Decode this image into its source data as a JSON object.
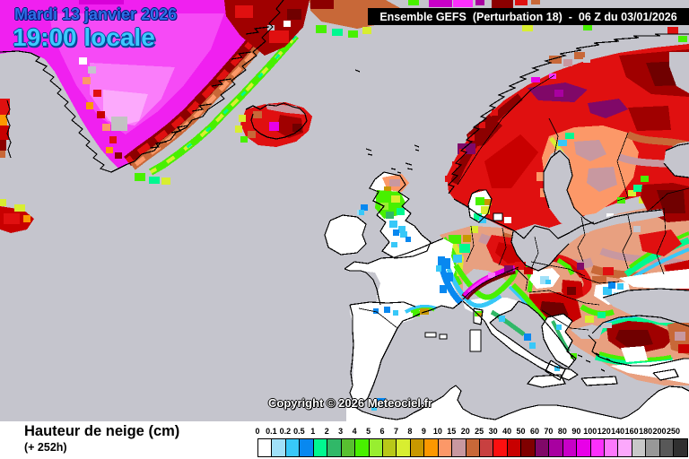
{
  "header": {
    "date": "Mardi 13 janvier 2026",
    "time": "19:00 locale",
    "model_label": "Ensemble GEFS  (Perturbation 18)  -  06 Z du 03/01/2026"
  },
  "map": {
    "copyright": "Copyright © 2026 Meteociel.fr",
    "sea_color": "#C5C5CD",
    "land_color": "#FFFFFF",
    "coastline_color": "#000000"
  },
  "legend": {
    "title": "Hauteur de neige (cm)",
    "lead_time": "(+ 252h)",
    "scale": {
      "labels": [
        "0",
        "0.1",
        "0.2",
        "0.5",
        "1",
        "2",
        "3",
        "4",
        "5",
        "6",
        "7",
        "8",
        "9",
        "10",
        "15",
        "20",
        "25",
        "30",
        "40",
        "50",
        "60",
        "70",
        "80",
        "90",
        "100",
        "120",
        "140",
        "160",
        "180",
        "200",
        "250"
      ],
      "colors": [
        "#FFFFFF",
        "#A0E0F8",
        "#38C8F8",
        "#0888F0",
        "#00F890",
        "#30B868",
        "#58C030",
        "#48F000",
        "#98EE30",
        "#B8C818",
        "#D8EE30",
        "#C89800",
        "#FC9800",
        "#FC9868",
        "#C898A0",
        "#C86838",
        "#C84040",
        "#FC1010",
        "#C80000",
        "#800000",
        "#800868",
        "#A800A0",
        "#C800C8",
        "#E800E8",
        "#FC30FC",
        "#FC78FC",
        "#FCA8FC",
        "#C8C8C8",
        "#989898",
        "#585858",
        "#303030"
      ]
    }
  }
}
